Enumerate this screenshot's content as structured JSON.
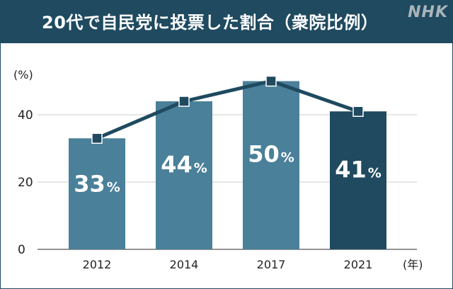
{
  "header": {
    "title": "20代で自民党に投票した割合（衆院比例）",
    "brand": "NHK"
  },
  "chart_data": {
    "type": "bar",
    "categories": [
      "2012",
      "2014",
      "2017",
      "2021"
    ],
    "series": [
      {
        "values": [
          33,
          44,
          50,
          41
        ]
      }
    ],
    "data_labels": [
      "33",
      "44",
      "50",
      "41"
    ],
    "data_label_unit": "%",
    "line_overlay": true,
    "ylabel": "(%)",
    "xlabel": "(年)",
    "ylim": [
      0,
      50
    ],
    "yticks": [
      0,
      20,
      40
    ],
    "grid": true,
    "colors": {
      "bar": "#4a8099",
      "bar_last": "#1f4a60",
      "line": "#1f4a60",
      "header": "#1f4a60"
    }
  }
}
